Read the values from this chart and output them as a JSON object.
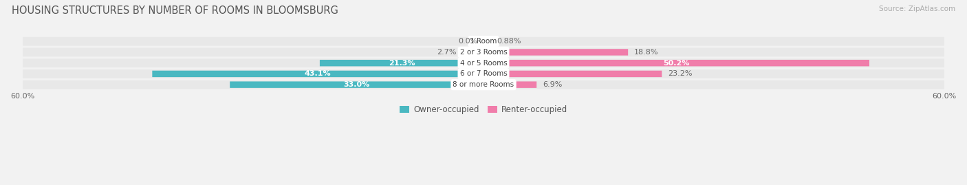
{
  "title": "HOUSING STRUCTURES BY NUMBER OF ROOMS IN BLOOMSBURG",
  "source": "Source: ZipAtlas.com",
  "categories": [
    "1 Room",
    "2 or 3 Rooms",
    "4 or 5 Rooms",
    "6 or 7 Rooms",
    "8 or more Rooms"
  ],
  "owner_values": [
    0.0,
    2.7,
    21.3,
    43.1,
    33.0
  ],
  "renter_values": [
    0.88,
    18.8,
    50.2,
    23.2,
    6.9
  ],
  "owner_color": "#4ab8c1",
  "renter_color": "#f07daa",
  "axis_max": 60.0,
  "background_color": "#f2f2f2",
  "row_bg_color": "#e8e8e8",
  "title_fontsize": 10.5,
  "source_fontsize": 7.5,
  "legend_fontsize": 8.5,
  "label_fontsize": 8,
  "category_fontsize": 7.5,
  "bar_height": 0.58
}
